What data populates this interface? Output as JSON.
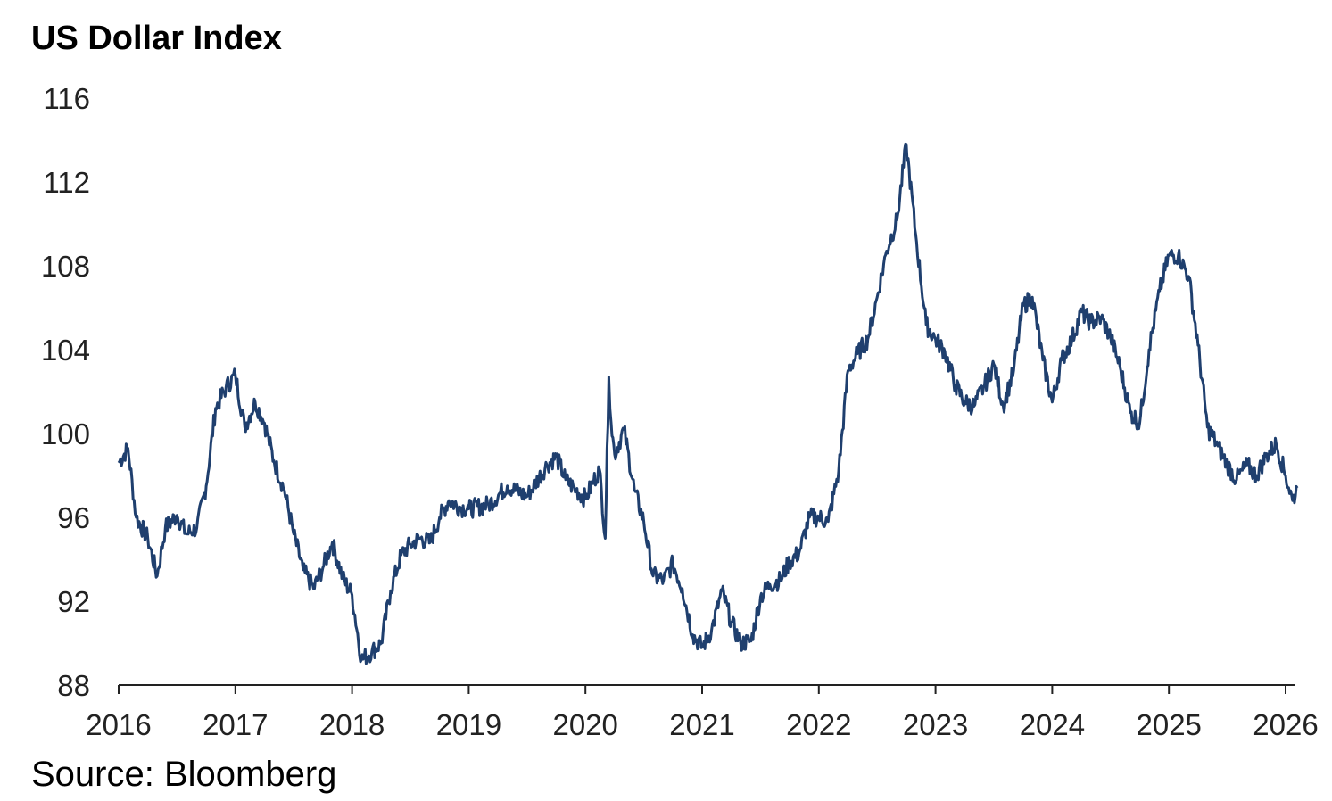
{
  "title": "US Dollar Index",
  "source": "Source: Bloomberg",
  "colors": {
    "line": "#1f3f6e",
    "axis": "#222222"
  },
  "chart_data": {
    "type": "line",
    "title": "US Dollar Index",
    "xlabel": "",
    "ylabel": "",
    "xlim": [
      2016.0,
      2026.1
    ],
    "ylim": [
      88,
      116
    ],
    "grid": false,
    "x_ticks": [
      "2016",
      "2017",
      "2018",
      "2019",
      "2020",
      "2021",
      "2022",
      "2023",
      "2024",
      "2025",
      "2026"
    ],
    "y_ticks": [
      "88",
      "92",
      "96",
      "100",
      "104",
      "108",
      "112",
      "116"
    ],
    "series": [
      {
        "x": [
          2016.0,
          2016.08,
          2016.15,
          2016.25,
          2016.33,
          2016.4,
          2016.5,
          2016.58,
          2016.67,
          2016.75,
          2016.83,
          2016.92,
          2017.0,
          2017.08,
          2017.17,
          2017.25,
          2017.33,
          2017.42,
          2017.5,
          2017.58,
          2017.67,
          2017.75,
          2017.83,
          2017.92,
          2018.0,
          2018.08,
          2018.17,
          2018.25,
          2018.33,
          2018.42,
          2018.5,
          2018.58,
          2018.67,
          2018.75,
          2018.83,
          2018.92,
          2019.0,
          2019.17,
          2019.33,
          2019.5,
          2019.67,
          2019.75,
          2019.83,
          2019.92,
          2020.0,
          2020.12,
          2020.17,
          2020.2,
          2020.22,
          2020.25,
          2020.33,
          2020.42,
          2020.5,
          2020.58,
          2020.67,
          2020.75,
          2020.83,
          2020.92,
          2021.0,
          2021.08,
          2021.17,
          2021.25,
          2021.33,
          2021.42,
          2021.5,
          2021.58,
          2021.67,
          2021.75,
          2021.83,
          2021.92,
          2022.0,
          2022.08,
          2022.17,
          2022.25,
          2022.33,
          2022.42,
          2022.5,
          2022.58,
          2022.67,
          2022.75,
          2022.83,
          2022.92,
          2023.0,
          2023.08,
          2023.17,
          2023.25,
          2023.33,
          2023.42,
          2023.5,
          2023.58,
          2023.67,
          2023.75,
          2023.83,
          2023.92,
          2024.0,
          2024.08,
          2024.17,
          2024.25,
          2024.33,
          2024.42,
          2024.5,
          2024.58,
          2024.67,
          2024.75,
          2024.83,
          2024.92,
          2025.0,
          2025.08,
          2025.17,
          2025.25,
          2025.33,
          2025.42,
          2025.5,
          2025.58,
          2025.67,
          2025.75,
          2025.83,
          2025.92,
          2026.0,
          2026.06,
          2026.1
        ],
        "y": [
          98.6,
          99.3,
          96.0,
          95.0,
          93.2,
          95.5,
          96.1,
          95.2,
          95.5,
          97.5,
          101.2,
          102.2,
          102.8,
          100.3,
          101.5,
          100.5,
          98.7,
          97.3,
          95.2,
          93.5,
          92.6,
          93.6,
          94.8,
          93.1,
          92.3,
          89.2,
          89.6,
          90.0,
          92.5,
          94.2,
          94.7,
          95.0,
          94.8,
          96.0,
          96.8,
          96.5,
          96.4,
          96.6,
          97.5,
          97.0,
          98.5,
          98.9,
          97.8,
          97.3,
          96.9,
          98.3,
          95.0,
          102.7,
          100.5,
          99.0,
          100.2,
          97.3,
          95.8,
          93.2,
          93.0,
          93.8,
          92.6,
          90.4,
          89.8,
          90.6,
          92.5,
          91.0,
          90.0,
          90.1,
          92.2,
          92.8,
          93.0,
          93.9,
          94.3,
          96.0,
          96.0,
          95.8,
          98.2,
          103.0,
          103.8,
          104.5,
          106.5,
          108.7,
          110.2,
          113.8,
          109.5,
          105.2,
          104.5,
          103.9,
          102.3,
          101.5,
          101.3,
          102.3,
          103.3,
          101.3,
          103.0,
          106.1,
          106.5,
          103.5,
          101.5,
          103.5,
          104.5,
          105.8,
          105.3,
          105.5,
          104.6,
          103.2,
          101.0,
          100.5,
          104.0,
          106.8,
          108.5,
          108.5,
          107.5,
          104.2,
          100.3,
          99.4,
          98.5,
          97.8,
          98.5,
          98.0,
          98.9,
          99.5,
          98.0,
          96.8,
          97.4
        ]
      }
    ]
  }
}
